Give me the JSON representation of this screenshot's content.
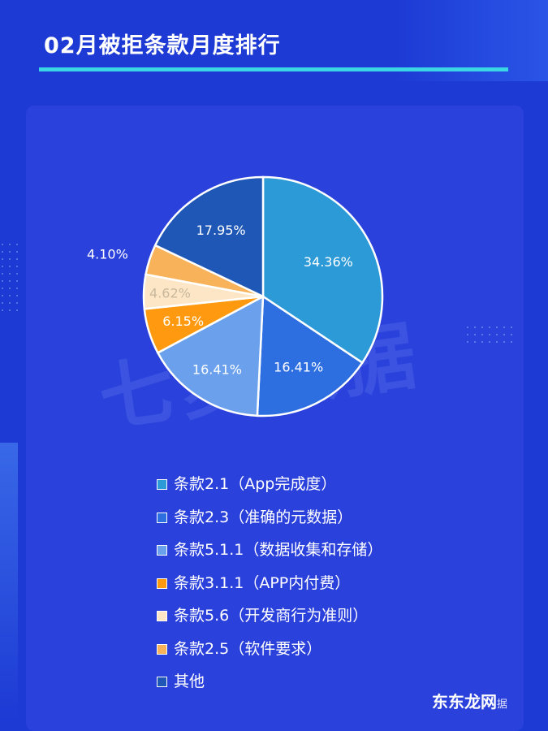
{
  "header": {
    "title": "02月被拒条款月度排行"
  },
  "watermark": "七麦数据",
  "corner_mark": {
    "logo": "东东龙网",
    "small": "据"
  },
  "chart_data": {
    "type": "pie",
    "title": "02月被拒条款月度排行",
    "slices": [
      {
        "label": "条款2.1（App完成度）",
        "value": 34.36,
        "value_label": "34.36%",
        "color": "#2d9ad8"
      },
      {
        "label": "条款2.3（准确的元数据）",
        "value": 16.41,
        "value_label": "16.41%",
        "color": "#2d6ee0"
      },
      {
        "label": "条款5.1.1（数据收集和存储）",
        "value": 16.41,
        "value_label": "16.41%",
        "color": "#6aa0ec"
      },
      {
        "label": "条款3.1.1（APP内付费）",
        "value": 6.15,
        "value_label": "6.15%",
        "color": "#ff9a10"
      },
      {
        "label": "条款5.6（开发商行为准则）",
        "value": 4.62,
        "value_label": "4.62%",
        "color": "#fde6c6"
      },
      {
        "label": "条款2.5（软件要求）",
        "value": 4.1,
        "value_label": "4.10%",
        "color": "#f8b259"
      },
      {
        "label": "其他",
        "value": 17.95,
        "value_label": "17.95%",
        "color": "#1e57b6"
      }
    ],
    "legend_position": "bottom"
  }
}
